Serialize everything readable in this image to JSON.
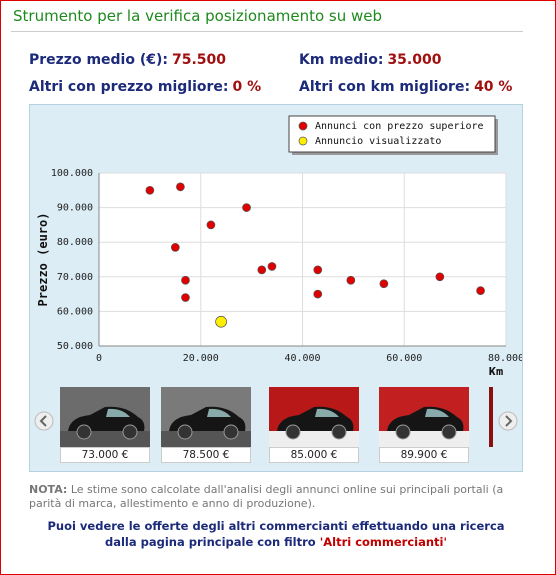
{
  "header": {
    "title": "Strumento per la verifica posizionamento su web"
  },
  "stats": [
    {
      "label": "Prezzo medio (€):",
      "value": "75.500"
    },
    {
      "label": "Km medio:",
      "value": "35.000"
    },
    {
      "label": "Altri con prezzo migliore:",
      "value": "0 %"
    },
    {
      "label": "Altri con km migliore:",
      "value": "40 %"
    }
  ],
  "chart_data": {
    "type": "scatter",
    "y_label": "Prezzo (euro)",
    "x_label": "Km",
    "xlim": [
      0,
      80000
    ],
    "ylim": [
      50000,
      100000
    ],
    "xticks": [
      0,
      {
        "value": 20000,
        "label": "20.000"
      },
      {
        "value": 40000,
        "label": "40.000"
      },
      {
        "value": 60000,
        "label": "60.000"
      },
      {
        "value": 80000,
        "label": "80.000"
      }
    ],
    "yticks": [
      {
        "value": 50000,
        "label": "50.000"
      },
      {
        "value": 60000,
        "label": "60.000"
      },
      {
        "value": 70000,
        "label": "70.000"
      },
      {
        "value": 80000,
        "label": "80.000"
      },
      {
        "value": 90000,
        "label": "90.000"
      },
      {
        "value": 100000,
        "label": "100.000"
      }
    ],
    "grid": true,
    "legend": "upper right",
    "series": [
      {
        "name": "Annunci con prezzo superiore",
        "color": "#e00000",
        "x": [
          10000,
          16000,
          22000,
          29000,
          15000,
          17000,
          17000,
          32000,
          34000,
          43000,
          43000,
          49500,
          56000,
          67000,
          75000
        ],
        "values": [
          95000,
          96000,
          85000,
          90000,
          78500,
          69000,
          64000,
          72000,
          73000,
          72000,
          65000,
          69000,
          68000,
          70000,
          66000
        ]
      },
      {
        "name": "Annuncio visualizzato",
        "color": "#ffee00",
        "x": [
          24000
        ],
        "values": [
          57000
        ]
      }
    ]
  },
  "thumbnails": [
    "73.000 €",
    "78.500 €",
    "85.000 €",
    "89.900 €"
  ],
  "note": {
    "label": "NOTA:",
    "text": "Le stime sono calcolate dall'analisi degli annunci online sui principali portali (a parità di marca, allestimento e anno di produzione)."
  },
  "footer": {
    "text": "Puoi vedere le offerte degli altri commercianti effettuando una ricerca dalla pagina principale con filtro",
    "link": "'Altri commercianti'"
  }
}
